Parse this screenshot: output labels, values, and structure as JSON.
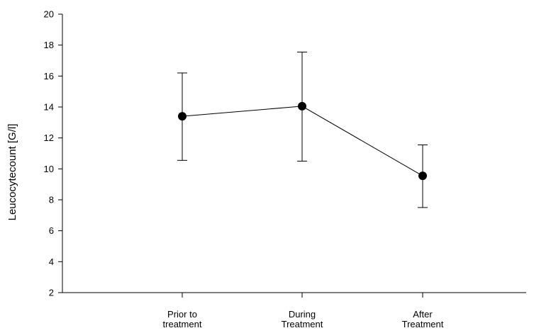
{
  "chart_data": {
    "type": "line",
    "title": "",
    "xlabel": "",
    "ylabel": "Leucocytecount [G/l]",
    "categories": [
      [
        "Prior to",
        "treatment"
      ],
      [
        "During",
        "Treatment"
      ],
      [
        "After",
        "Treatment"
      ]
    ],
    "series": [
      {
        "values": [
          13.4,
          14.05,
          9.55
        ],
        "error_low": [
          10.55,
          10.5,
          7.5
        ],
        "error_high": [
          16.2,
          17.55,
          11.55
        ]
      }
    ],
    "ylim": [
      2,
      20
    ],
    "yticks": [
      2,
      4,
      6,
      8,
      10,
      12,
      14,
      16,
      18,
      20
    ],
    "grid": false,
    "legend": "none",
    "colors": {
      "line": "#000000",
      "marker": "#000000",
      "axis": "#000000"
    }
  }
}
